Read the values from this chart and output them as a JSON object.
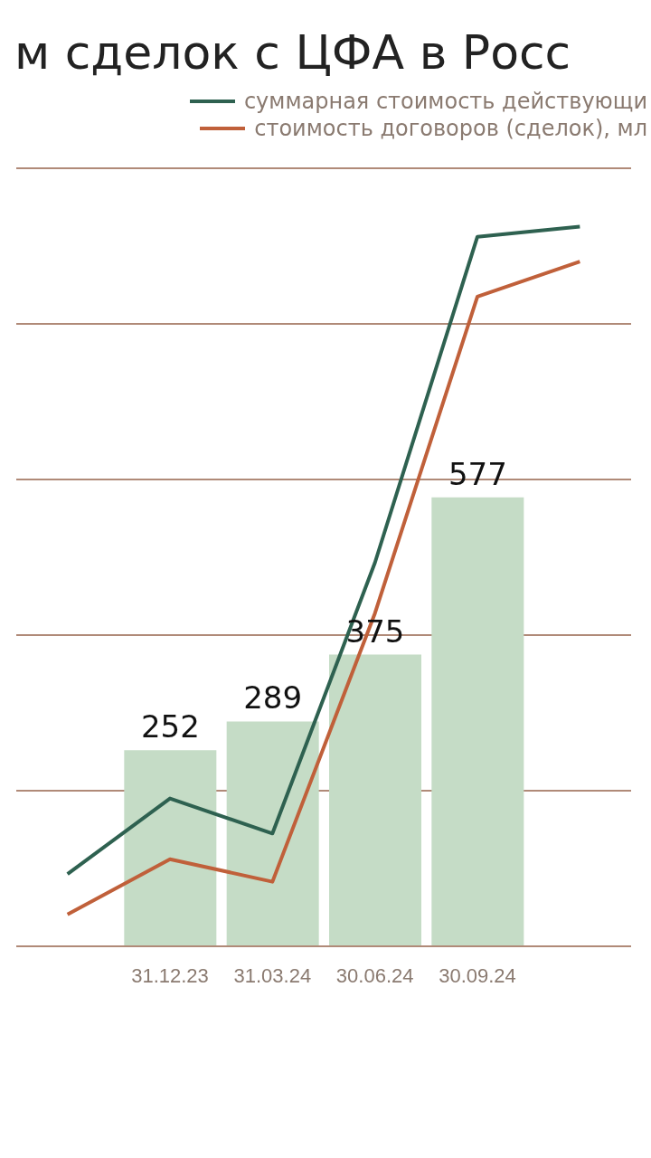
{
  "chart_data": {
    "type": "bar",
    "title": "м сделок с ЦФА в Росс",
    "categories": [
      null,
      "31.12.23",
      "31.03.24",
      "30.06.24",
      "30.09.24",
      null
    ],
    "series": [
      {
        "color": "#c5dcc6",
        "values": [
          null,
          252,
          289,
          375,
          577,
          null
        ],
        "value_labels": [
          null,
          "252",
          "289",
          "375",
          "577",
          null
        ]
      },
      {
        "type": "line",
        "name": "суммарная стоимость действующи",
        "color": "#2e6150",
        "values": [
          93,
          190,
          145,
          493,
          912,
          925
        ]
      },
      {
        "type": "line",
        "name": "стоимость договоров (сделок), мл",
        "color": "#c0603a",
        "values": [
          41,
          112,
          83,
          428,
          835,
          880
        ]
      }
    ],
    "ylim": [
      0,
      1000
    ],
    "yticks": [
      {
        "value": 0,
        "label": null
      },
      {
        "value": 200,
        "label": null
      },
      {
        "value": 400,
        "label": null
      },
      {
        "value": 600,
        "label": null
      },
      {
        "value": 800,
        "label": null
      },
      {
        "value": 1000,
        "label": null
      }
    ],
    "tick_labels": "x",
    "grid": "y",
    "legend": "top right",
    "marker": "none",
    "line_style": "solid"
  }
}
